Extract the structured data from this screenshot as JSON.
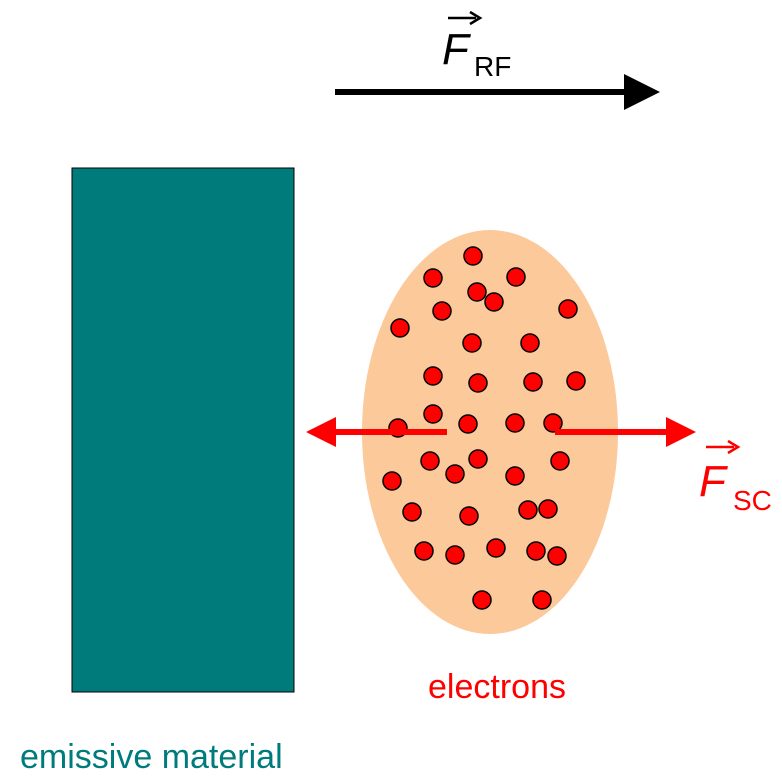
{
  "force_rf": {
    "symbol": "F",
    "subscript": "RF"
  },
  "force_sc": {
    "symbol": "F",
    "subscript": "SC"
  },
  "electrons_label": "electrons",
  "material_label": "emissive material"
}
